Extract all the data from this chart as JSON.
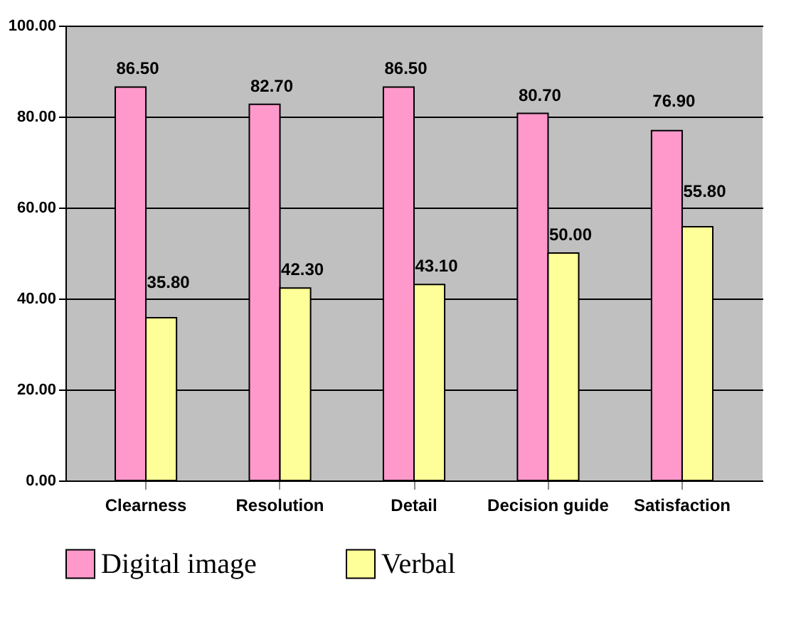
{
  "chart_data": {
    "type": "bar",
    "categories": [
      "Clearness",
      "Resolution",
      "Detail",
      "Decision guide",
      "Satisfaction"
    ],
    "series": [
      {
        "name": "Digital image",
        "color": "#ff99cc",
        "values": [
          86.5,
          82.7,
          86.5,
          80.7,
          76.9
        ],
        "value_labels": [
          "86.50",
          "82.70",
          "86.50",
          "80.70",
          "76.90"
        ]
      },
      {
        "name": "Verbal",
        "color": "#ffff99",
        "values": [
          35.8,
          42.3,
          43.1,
          50.0,
          55.8
        ],
        "value_labels": [
          "35.80",
          "42.30",
          "43.10",
          "50.00",
          "55.80"
        ]
      }
    ],
    "ylim": [
      0,
      100
    ],
    "yticks": [
      {
        "value": 0,
        "label": "0.00"
      },
      {
        "value": 20,
        "label": "20.00"
      },
      {
        "value": 40,
        "label": "40.00"
      },
      {
        "value": 60,
        "label": "60.00"
      },
      {
        "value": 80,
        "label": "80.00"
      },
      {
        "value": 100,
        "label": "100.00"
      }
    ],
    "grid": "y",
    "legend": "bottom"
  }
}
